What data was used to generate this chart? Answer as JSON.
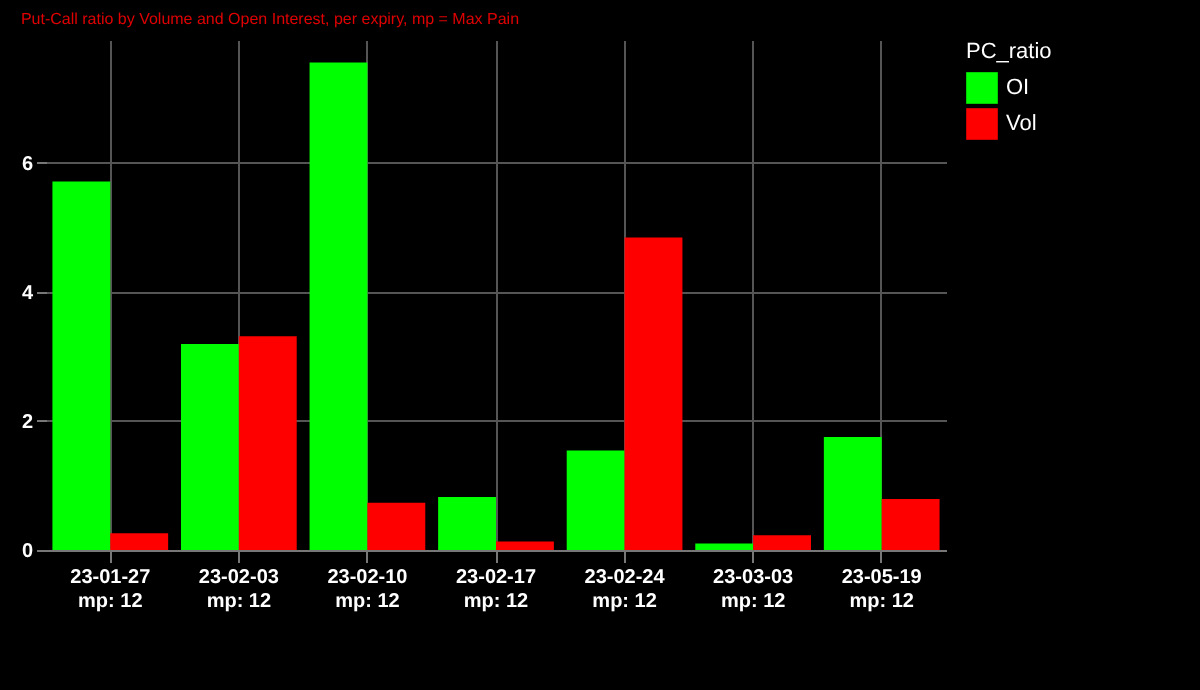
{
  "chart_data": {
    "type": "bar",
    "subtitle": "Put-Call ratio by Volume and Open Interest, per expiry, mp = Max Pain",
    "categories": [
      "23-01-27\nmp: 12",
      "23-02-03\nmp: 12",
      "23-02-10\nmp: 12",
      "23-02-17\nmp: 12",
      "23-02-24\nmp: 12",
      "23-03-03\nmp: 12",
      "23-05-19\nmp: 12"
    ],
    "series": [
      {
        "name": "OI",
        "color": "#00ff00",
        "values": [
          5.71,
          3.19,
          7.55,
          0.82,
          1.54,
          0.1,
          1.75
        ]
      },
      {
        "name": "Vol",
        "color": "#ff0000",
        "values": [
          0.26,
          3.31,
          0.73,
          0.13,
          4.84,
          0.23,
          0.79
        ]
      }
    ],
    "legend_title": "PC_ratio",
    "legend": "right",
    "ylim": [
      0,
      7.9
    ],
    "yticks": [
      0,
      2,
      4,
      6
    ],
    "grid": true
  }
}
